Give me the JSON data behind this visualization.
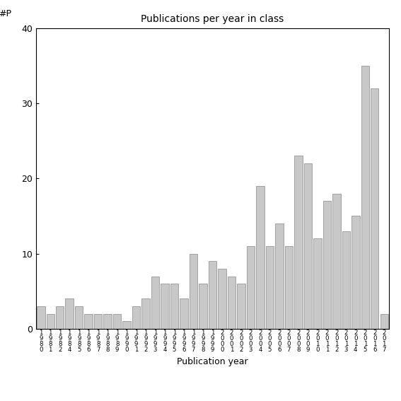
{
  "title": "Publications per year in class",
  "xlabel": "Publication year",
  "ylabel": "#P",
  "ylim": [
    0,
    40
  ],
  "yticks": [
    0,
    10,
    20,
    30,
    40
  ],
  "bar_color": "#c8c8c8",
  "bar_edgecolor": "#888888",
  "categories": [
    "1\n9\n8\n0",
    "1\n9\n8\n1",
    "1\n9\n8\n2",
    "1\n9\n8\n4",
    "1\n9\n8\n5",
    "1\n9\n8\n6",
    "1\n9\n8\n7",
    "1\n9\n8\n8",
    "1\n9\n8\n9",
    "1\n9\n9\n0",
    "1\n9\n9\n1",
    "1\n9\n9\n2",
    "1\n9\n9\n3",
    "1\n9\n9\n4",
    "1\n9\n9\n5",
    "1\n9\n9\n6",
    "1\n9\n9\n7",
    "1\n9\n9\n8",
    "1\n9\n9\n9",
    "2\n0\n0\n0",
    "2\n0\n0\n1",
    "2\n0\n0\n2",
    "2\n0\n0\n3",
    "2\n0\n0\n4",
    "2\n0\n0\n5",
    "2\n0\n0\n6",
    "2\n0\n0\n7",
    "2\n0\n0\n8",
    "2\n0\n0\n9",
    "2\n0\n1\n0",
    "2\n0\n1\n1",
    "2\n0\n1\n2",
    "2\n0\n1\n3",
    "2\n0\n1\n4",
    "2\n0\n1\n5",
    "2\n0\n1\n6",
    "2\n0\n1\n7"
  ],
  "values": [
    3,
    2,
    3,
    4,
    3,
    2,
    2,
    2,
    2,
    1,
    3,
    4,
    7,
    6,
    6,
    4,
    10,
    6,
    9,
    8,
    7,
    6,
    11,
    19,
    11,
    14,
    11,
    23,
    22,
    12,
    17,
    18,
    13,
    15,
    35,
    32,
    2
  ]
}
